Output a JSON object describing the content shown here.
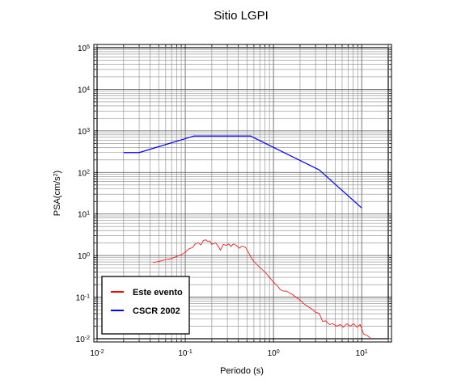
{
  "chart_data": {
    "type": "line",
    "title": "Sitio LGPI",
    "xlabel": "Periodo (s)",
    "ylabel_prefix": "PSA(cm/s",
    "ylabel_exp": "2",
    "ylabel_suffix": ")",
    "x_scale": "log",
    "y_scale": "log",
    "xlim": [
      0.01,
      20
    ],
    "ylim": [
      0.01,
      100000
    ],
    "grid": true,
    "legend_position": "bottom-left",
    "x_ticks": [
      {
        "base": "10",
        "exp": "-2"
      },
      {
        "base": "10",
        "exp": "-1"
      },
      {
        "base": "10",
        "exp": "0"
      },
      {
        "base": "10",
        "exp": "1"
      }
    ],
    "y_ticks": [
      {
        "base": "10",
        "exp": "-2"
      },
      {
        "base": "10",
        "exp": "-1"
      },
      {
        "base": "10",
        "exp": "0"
      },
      {
        "base": "10",
        "exp": "1"
      },
      {
        "base": "10",
        "exp": "2"
      },
      {
        "base": "10",
        "exp": "3"
      },
      {
        "base": "10",
        "exp": "4"
      },
      {
        "base": "10",
        "exp": "5"
      }
    ],
    "series": [
      {
        "name": "Este evento",
        "color": "#ff0000",
        "x": [
          0.043,
          0.05,
          0.06,
          0.07,
          0.08,
          0.09,
          0.1,
          0.11,
          0.12,
          0.13,
          0.14,
          0.15,
          0.16,
          0.17,
          0.18,
          0.19,
          0.2,
          0.21,
          0.22,
          0.24,
          0.25,
          0.27,
          0.29,
          0.31,
          0.33,
          0.35,
          0.38,
          0.41,
          0.44,
          0.48,
          0.52,
          0.56,
          0.6,
          0.7,
          0.8,
          0.9,
          1.0,
          1.1,
          1.2,
          1.3,
          1.4,
          1.6,
          1.8,
          2.0,
          2.2,
          2.5,
          2.8,
          3.0,
          3.3,
          3.6,
          3.9,
          4.3,
          4.7,
          5.2,
          5.7,
          6.2,
          6.8,
          7.4,
          8.1,
          8.8,
          9.6,
          10.5,
          11.5,
          12.5
        ],
        "values": [
          0.68,
          0.72,
          0.8,
          0.85,
          0.95,
          1.05,
          1.2,
          1.45,
          1.55,
          1.9,
          2.05,
          1.8,
          2.3,
          2.4,
          2.2,
          2.25,
          1.85,
          1.95,
          2.05,
          1.6,
          1.35,
          1.85,
          1.75,
          1.9,
          1.65,
          1.9,
          1.75,
          1.5,
          1.7,
          1.6,
          1.2,
          0.88,
          0.72,
          0.52,
          0.4,
          0.3,
          0.23,
          0.19,
          0.15,
          0.14,
          0.14,
          0.12,
          0.1,
          0.085,
          0.07,
          0.058,
          0.05,
          0.043,
          0.041,
          0.026,
          0.027,
          0.022,
          0.023,
          0.02,
          0.022,
          0.019,
          0.023,
          0.02,
          0.023,
          0.019,
          0.022,
          0.013,
          0.012,
          0.0105
        ]
      },
      {
        "name": "CSCR 2002",
        "color": "#0000ff",
        "x": [
          0.02,
          0.03,
          0.125,
          0.55,
          3.3,
          10.0
        ],
        "values": [
          300,
          300,
          750,
          750,
          115,
          14
        ]
      }
    ]
  }
}
